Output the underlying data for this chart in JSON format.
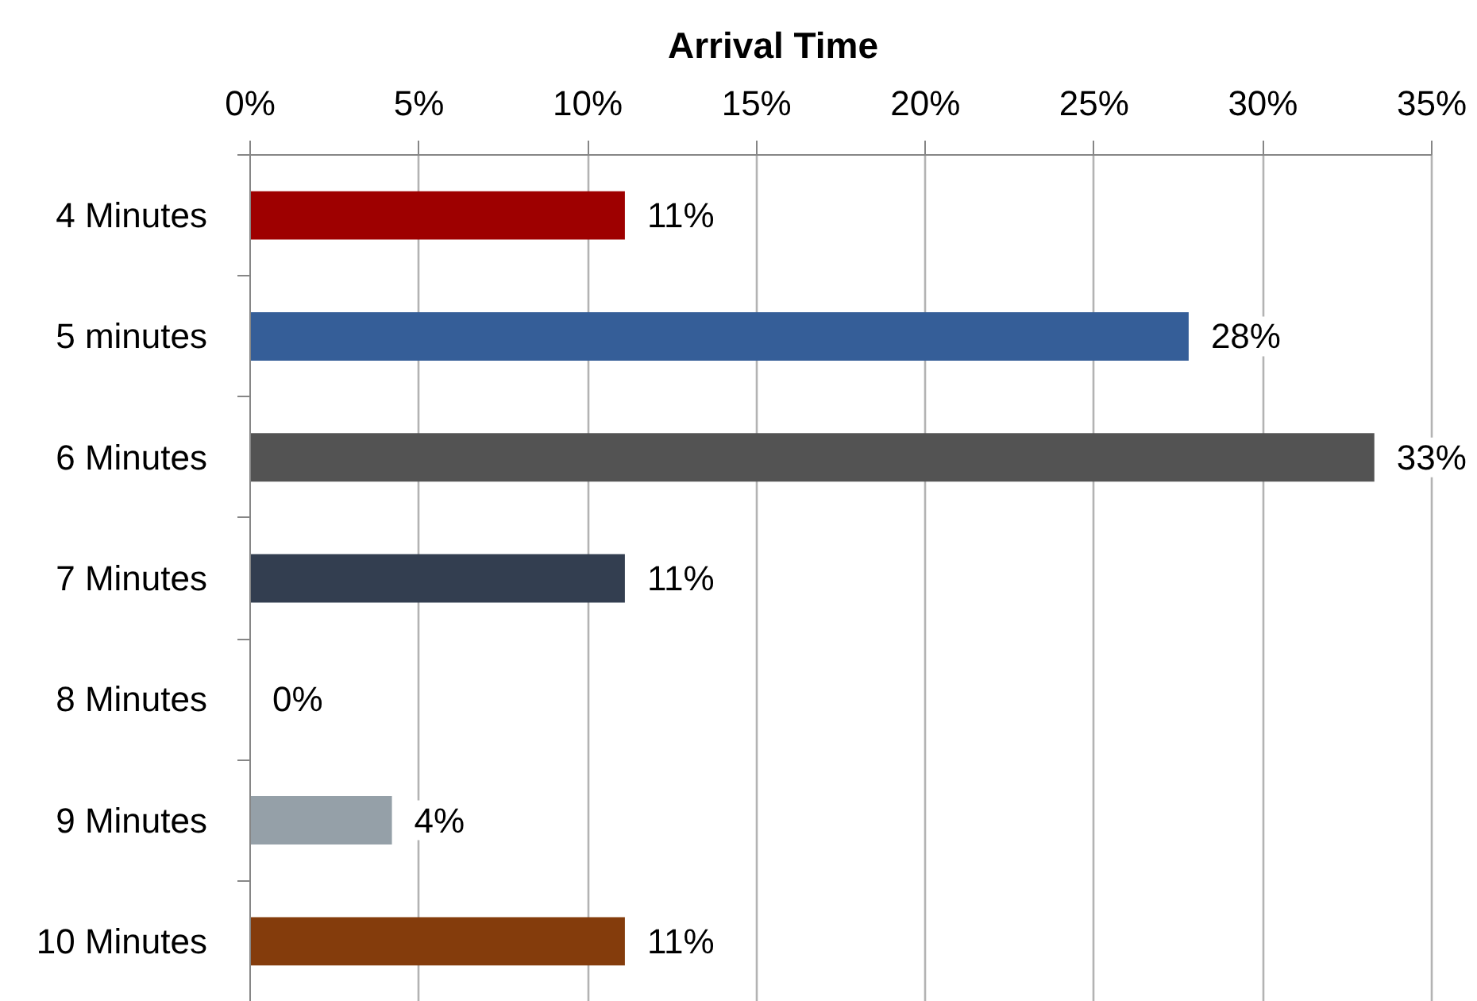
{
  "chart_data": {
    "type": "bar",
    "orientation": "horizontal",
    "title": "Arrival Time",
    "categories": [
      "4 Minutes",
      "5 minutes",
      "6 Minutes",
      "7 Minutes",
      "8 Minutes",
      "9 Minutes",
      "10 Minutes"
    ],
    "values": [
      11.1,
      27.8,
      33.3,
      11.1,
      0,
      4.2,
      11.1
    ],
    "colors": [
      "#9e0000",
      "#355e98",
      "#535353",
      "#333e50",
      "#ffffff",
      "#95a0a8",
      "#843c0c"
    ],
    "value_labels": [
      "11%",
      "28%",
      "33%",
      "11%",
      "0%",
      "4%",
      "11%"
    ],
    "xlim": [
      0,
      35
    ],
    "xticks": [
      {
        "value": 0,
        "label": "0%"
      },
      {
        "value": 5,
        "label": "5%"
      },
      {
        "value": 10,
        "label": "10%"
      },
      {
        "value": 15,
        "label": "15%"
      },
      {
        "value": 20,
        "label": "20%"
      },
      {
        "value": 25,
        "label": "25%"
      },
      {
        "value": 30,
        "label": "30%"
      },
      {
        "value": 35,
        "label": "35%"
      }
    ],
    "grid": "x"
  }
}
